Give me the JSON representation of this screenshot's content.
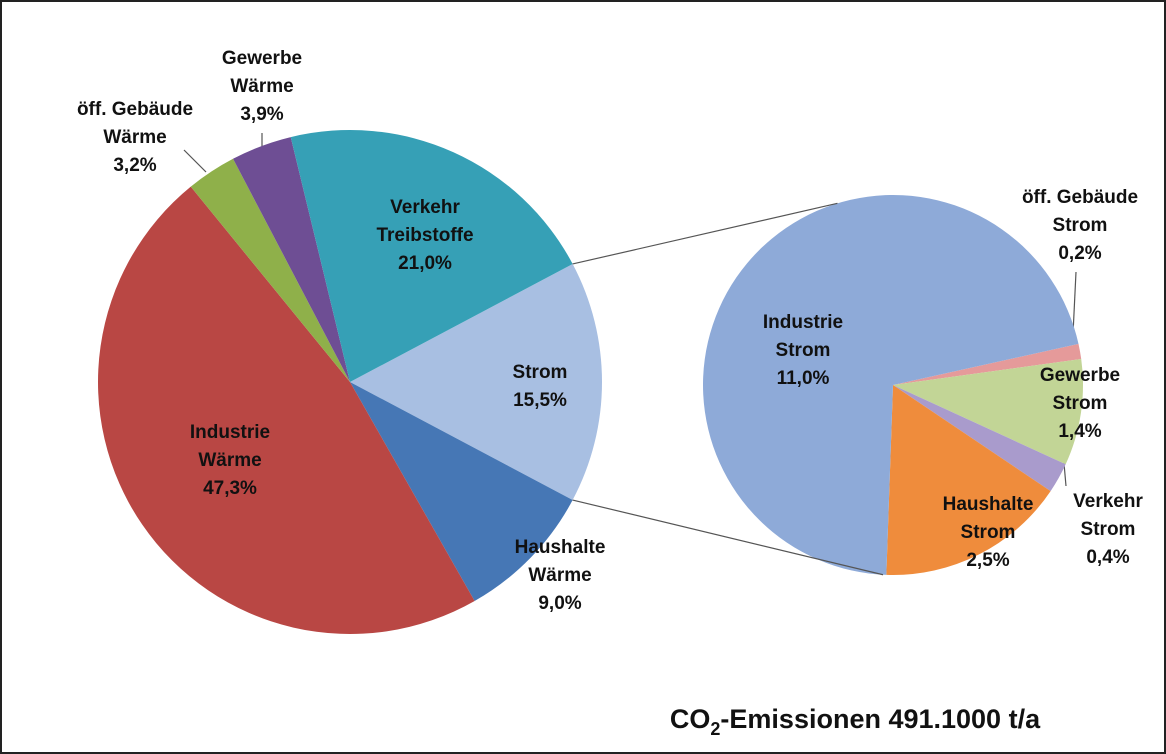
{
  "title": [
    "CO",
    "2",
    "-Emissionen 491.1000 t/a"
  ],
  "chart_data": [
    {
      "type": "pie",
      "categories": [
        [
          "Strom"
        ],
        [
          "Haushalte",
          "Wärme"
        ],
        [
          "Industrie",
          "Wärme"
        ],
        [
          "öff. Gebäude",
          "Wärme"
        ],
        [
          "Gewerbe",
          "Wärme"
        ],
        [
          "Verkehr",
          "Treibstoffe"
        ]
      ],
      "values": [
        15.5,
        9.0,
        47.3,
        3.2,
        3.9,
        21.0
      ],
      "value_labels": [
        "15,5%",
        "9,0%",
        "47,3%",
        "3,2%",
        "3,9%",
        "21,0%"
      ],
      "colors": [
        "#a8bfe2",
        "#4677b5",
        "#b94744",
        "#8fb04a",
        "#6e4e94",
        "#36a0b6"
      ]
    },
    {
      "type": "pie",
      "categories": [
        [
          "öff. Gebäude",
          "Strom"
        ],
        [
          "Gewerbe",
          "Strom"
        ],
        [
          "Verkehr",
          "Strom"
        ],
        [
          "Haushalte",
          "Strom"
        ],
        [
          "Industrie",
          "Strom"
        ]
      ],
      "values": [
        0.2,
        1.4,
        0.4,
        2.5,
        11.0
      ],
      "value_labels": [
        "0,2%",
        "1,4%",
        "0,4%",
        "2,5%",
        "11,0%"
      ],
      "colors": [
        "#e59a9a",
        "#c2d596",
        "#a99bcc",
        "#ef8c3c",
        "#8eaad8"
      ]
    }
  ]
}
